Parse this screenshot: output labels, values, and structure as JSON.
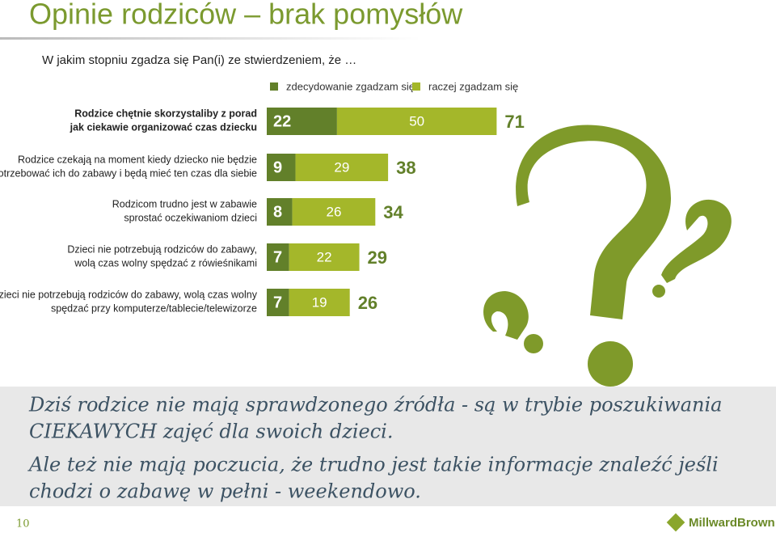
{
  "chart_data": {
    "type": "stacked-bar-horizontal",
    "title": "Opinie rodziców – brak pomysłów",
    "subtitle": "W jakim stopniu zgadza się Pan(i) ze stwierdzeniem, że …",
    "categories": [
      [
        "Rodzice chętnie skorzystaliby z porad",
        "jak ciekawie organizować czas dziecku"
      ],
      [
        "Rodzice czekają na moment kiedy dziecko nie będzie",
        "potrzebować ich do zabawy i będą mieć ten czas dla siebie"
      ],
      [
        "Rodzicom trudno jest w zabawie",
        "sprostać oczekiwaniom dzieci"
      ],
      [
        "Dzieci nie potrzebują rodziców do zabawy,",
        "wolą czas wolny spędzać z rówieśnikami"
      ],
      [
        "Dzieci nie potrzebują rodziców do zabawy, wolą czas wolny",
        "spędzać przy komputerze/tablecie/telewizorze"
      ]
    ],
    "series": [
      {
        "name": "zdecydowanie zgadzam się",
        "color": "#62802a",
        "values": [
          22,
          9,
          8,
          7,
          7
        ]
      },
      {
        "name": "raczej zgadzam się",
        "color": "#a4b72a",
        "values": [
          50,
          29,
          26,
          22,
          19
        ]
      }
    ],
    "totals": [
      71,
      38,
      34,
      29,
      26
    ],
    "note": [
      "Dziś rodzice nie mają sprawdzonego źródła - są w trybie poszukiwania",
      "CIEKAWYCH zajęć dla swoich dzieci.",
      "Ale też nie mają poczucia, że trudno jest takie informacje znaleźć  jeśli",
      "chodzi o zabawę w pełni - weekendowo."
    ],
    "page_number": "10",
    "brand": "MillwardBrown"
  }
}
